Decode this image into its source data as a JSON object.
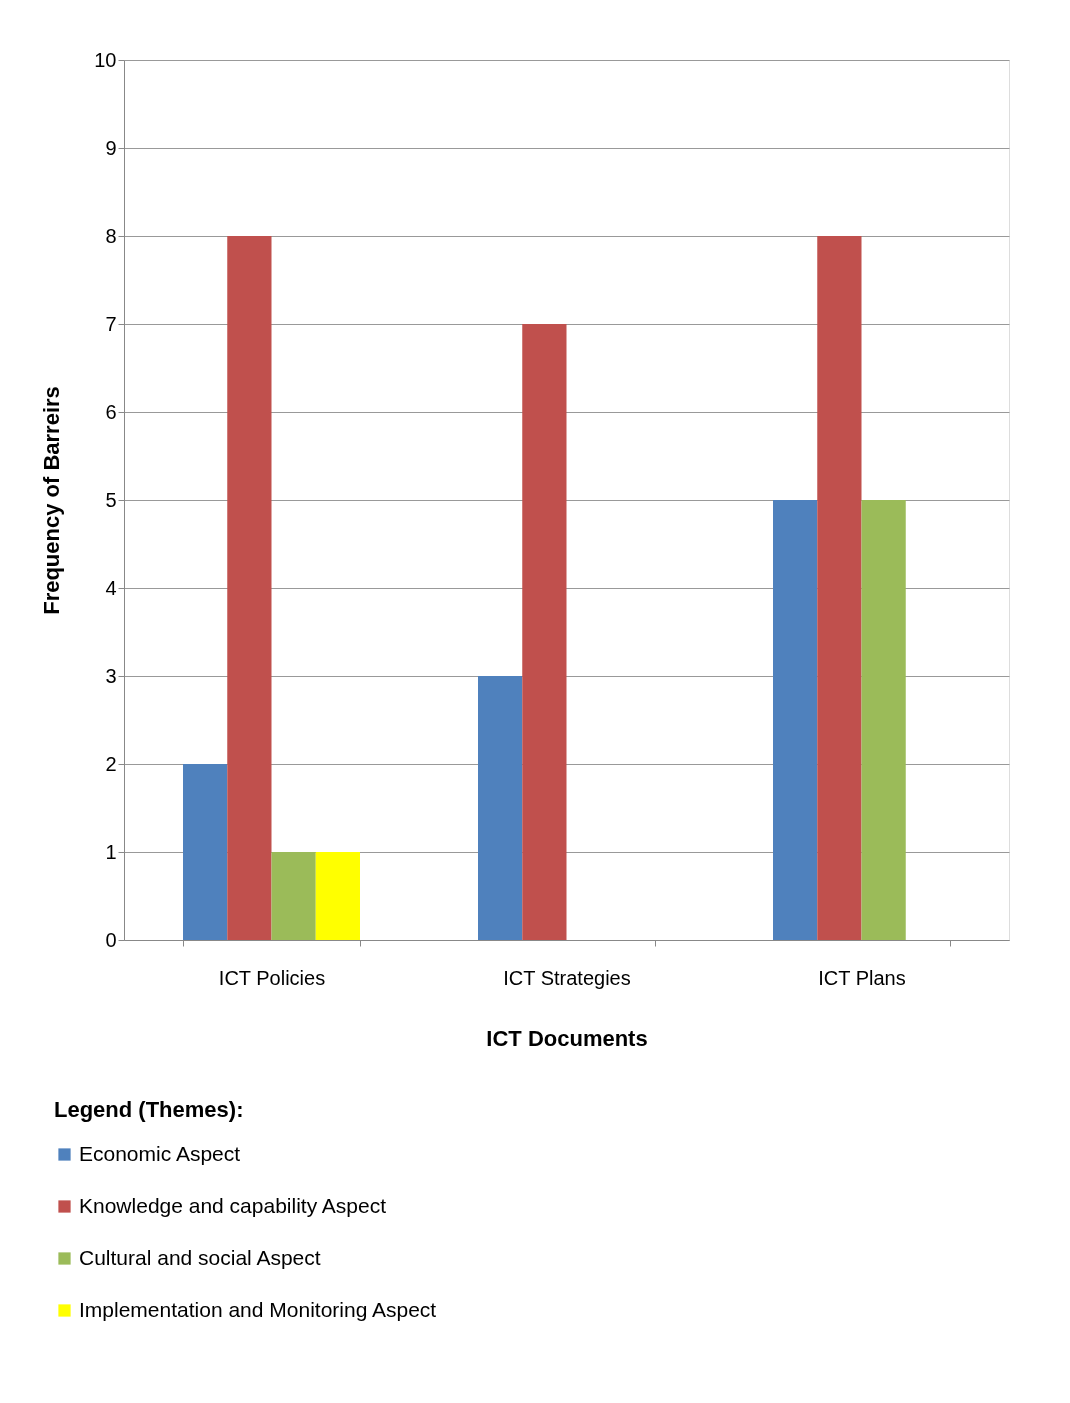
{
  "chart_data": {
    "type": "bar",
    "xlabel": "ICT Documents",
    "ylabel": "Frequency of Barreirs",
    "legend_title": "Legend (Themes):",
    "categories": [
      "ICT Policies",
      "ICT Strategies",
      "ICT Plans"
    ],
    "series": [
      {
        "name": "Economic Aspect",
        "color": "#4f81bd",
        "values": [
          2,
          3,
          5
        ]
      },
      {
        "name": "Knowledge and capability Aspect",
        "color": "#c0504d",
        "values": [
          8,
          7,
          8
        ]
      },
      {
        "name": "Cultural and social Aspect",
        "color": "#9bbb59",
        "values": [
          1,
          null,
          5
        ]
      },
      {
        "name": "Implementation and Monitoring Aspect",
        "color": "#ffff00",
        "values": [
          1,
          null,
          null
        ]
      }
    ],
    "ylim": [
      0,
      10
    ],
    "yticks": [
      0,
      1,
      2,
      3,
      4,
      5,
      6,
      7,
      8,
      9,
      10
    ],
    "grid": "y",
    "legend": "bottom"
  }
}
